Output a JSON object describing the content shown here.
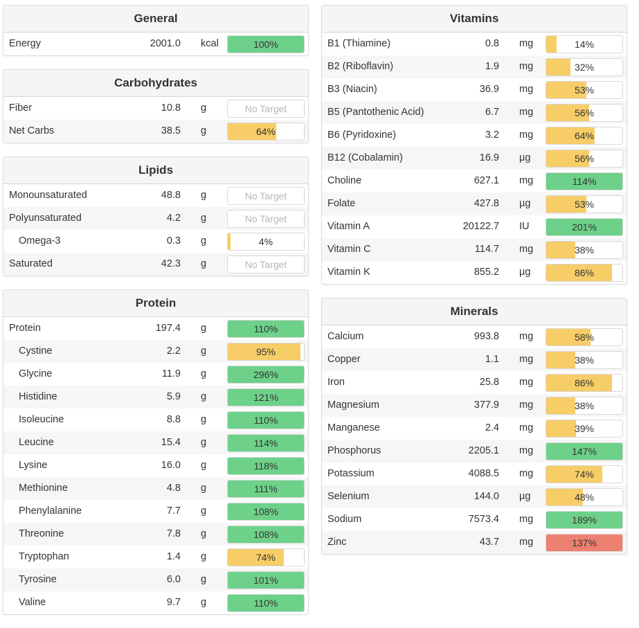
{
  "colors": {
    "green": "#6dd189",
    "yellow": "#f7cd68",
    "red": "#ee8070"
  },
  "left": [
    {
      "title": "General",
      "rows": [
        {
          "label": "Energy",
          "amount": "2001.0",
          "unit": "kcal",
          "pct_text": "100%",
          "level": 100,
          "status": "green"
        }
      ]
    },
    {
      "title": "Carbohydrates",
      "rows": [
        {
          "label": "Fiber",
          "amount": "10.8",
          "unit": "g",
          "pct_text": "No Target",
          "level": null,
          "status": "none"
        },
        {
          "label": "Net Carbs",
          "amount": "38.5",
          "unit": "g",
          "pct_text": "64%",
          "level": 64,
          "status": "yellow"
        }
      ]
    },
    {
      "title": "Lipids",
      "rows": [
        {
          "label": "Monounsaturated",
          "amount": "48.8",
          "unit": "g",
          "pct_text": "No Target",
          "level": null,
          "status": "none"
        },
        {
          "label": "Polyunsaturated",
          "amount": "4.2",
          "unit": "g",
          "pct_text": "No Target",
          "level": null,
          "status": "none"
        },
        {
          "label": "Omega-3",
          "amount": "0.3",
          "unit": "g",
          "pct_text": "4%",
          "level": 4,
          "status": "yellow",
          "indent": true
        },
        {
          "label": "Saturated",
          "amount": "42.3",
          "unit": "g",
          "pct_text": "No Target",
          "level": null,
          "status": "none"
        }
      ]
    },
    {
      "title": "Protein",
      "rows": [
        {
          "label": "Protein",
          "amount": "197.4",
          "unit": "g",
          "pct_text": "110%",
          "level": 100,
          "status": "green"
        },
        {
          "label": "Cystine",
          "amount": "2.2",
          "unit": "g",
          "pct_text": "95%",
          "level": 95,
          "status": "yellow",
          "indent": true
        },
        {
          "label": "Glycine",
          "amount": "11.9",
          "unit": "g",
          "pct_text": "296%",
          "level": 100,
          "status": "green",
          "indent": true
        },
        {
          "label": "Histidine",
          "amount": "5.9",
          "unit": "g",
          "pct_text": "121%",
          "level": 100,
          "status": "green",
          "indent": true
        },
        {
          "label": "Isoleucine",
          "amount": "8.8",
          "unit": "g",
          "pct_text": "110%",
          "level": 100,
          "status": "green",
          "indent": true
        },
        {
          "label": "Leucine",
          "amount": "15.4",
          "unit": "g",
          "pct_text": "114%",
          "level": 100,
          "status": "green",
          "indent": true
        },
        {
          "label": "Lysine",
          "amount": "16.0",
          "unit": "g",
          "pct_text": "118%",
          "level": 100,
          "status": "green",
          "indent": true
        },
        {
          "label": "Methionine",
          "amount": "4.8",
          "unit": "g",
          "pct_text": "111%",
          "level": 100,
          "status": "green",
          "indent": true
        },
        {
          "label": "Phenylalanine",
          "amount": "7.7",
          "unit": "g",
          "pct_text": "108%",
          "level": 100,
          "status": "green",
          "indent": true
        },
        {
          "label": "Threonine",
          "amount": "7.8",
          "unit": "g",
          "pct_text": "108%",
          "level": 100,
          "status": "green",
          "indent": true
        },
        {
          "label": "Tryptophan",
          "amount": "1.4",
          "unit": "g",
          "pct_text": "74%",
          "level": 74,
          "status": "yellow",
          "indent": true
        },
        {
          "label": "Tyrosine",
          "amount": "6.0",
          "unit": "g",
          "pct_text": "101%",
          "level": 100,
          "status": "green",
          "indent": true
        },
        {
          "label": "Valine",
          "amount": "9.7",
          "unit": "g",
          "pct_text": "110%",
          "level": 100,
          "status": "green",
          "indent": true
        }
      ]
    }
  ],
  "right": [
    {
      "title": "Vitamins",
      "rows": [
        {
          "label": "B1 (Thiamine)",
          "amount": "0.8",
          "unit": "mg",
          "pct_text": "14%",
          "level": 14,
          "status": "yellow"
        },
        {
          "label": "B2 (Riboflavin)",
          "amount": "1.9",
          "unit": "mg",
          "pct_text": "32%",
          "level": 32,
          "status": "yellow"
        },
        {
          "label": "B3 (Niacin)",
          "amount": "36.9",
          "unit": "mg",
          "pct_text": "53%",
          "level": 53,
          "status": "yellow"
        },
        {
          "label": "B5 (Pantothenic Acid)",
          "amount": "6.7",
          "unit": "mg",
          "pct_text": "56%",
          "level": 56,
          "status": "yellow"
        },
        {
          "label": "B6 (Pyridoxine)",
          "amount": "3.2",
          "unit": "mg",
          "pct_text": "64%",
          "level": 64,
          "status": "yellow"
        },
        {
          "label": "B12 (Cobalamin)",
          "amount": "16.9",
          "unit": "µg",
          "pct_text": "56%",
          "level": 56,
          "status": "yellow"
        },
        {
          "label": "Choline",
          "amount": "627.1",
          "unit": "mg",
          "pct_text": "114%",
          "level": 100,
          "status": "green"
        },
        {
          "label": "Folate",
          "amount": "427.8",
          "unit": "µg",
          "pct_text": "53%",
          "level": 53,
          "status": "yellow"
        },
        {
          "label": "Vitamin A",
          "amount": "20122.7",
          "unit": "IU",
          "pct_text": "201%",
          "level": 100,
          "status": "green"
        },
        {
          "label": "Vitamin C",
          "amount": "114.7",
          "unit": "mg",
          "pct_text": "38%",
          "level": 38,
          "status": "yellow"
        },
        {
          "label": "Vitamin K",
          "amount": "855.2",
          "unit": "µg",
          "pct_text": "86%",
          "level": 86,
          "status": "yellow"
        }
      ]
    },
    {
      "title": "Minerals",
      "rows": [
        {
          "label": "Calcium",
          "amount": "993.8",
          "unit": "mg",
          "pct_text": "58%",
          "level": 58,
          "status": "yellow"
        },
        {
          "label": "Copper",
          "amount": "1.1",
          "unit": "mg",
          "pct_text": "38%",
          "level": 38,
          "status": "yellow"
        },
        {
          "label": "Iron",
          "amount": "25.8",
          "unit": "mg",
          "pct_text": "86%",
          "level": 86,
          "status": "yellow"
        },
        {
          "label": "Magnesium",
          "amount": "377.9",
          "unit": "mg",
          "pct_text": "38%",
          "level": 38,
          "status": "yellow"
        },
        {
          "label": "Manganese",
          "amount": "2.4",
          "unit": "mg",
          "pct_text": "39%",
          "level": 39,
          "status": "yellow"
        },
        {
          "label": "Phosphorus",
          "amount": "2205.1",
          "unit": "mg",
          "pct_text": "147%",
          "level": 100,
          "status": "green"
        },
        {
          "label": "Potassium",
          "amount": "4088.5",
          "unit": "mg",
          "pct_text": "74%",
          "level": 74,
          "status": "yellow"
        },
        {
          "label": "Selenium",
          "amount": "144.0",
          "unit": "µg",
          "pct_text": "48%",
          "level": 48,
          "status": "yellow"
        },
        {
          "label": "Sodium",
          "amount": "7573.4",
          "unit": "mg",
          "pct_text": "189%",
          "level": 100,
          "status": "green"
        },
        {
          "label": "Zinc",
          "amount": "43.7",
          "unit": "mg",
          "pct_text": "137%",
          "level": 100,
          "status": "red"
        }
      ]
    }
  ]
}
